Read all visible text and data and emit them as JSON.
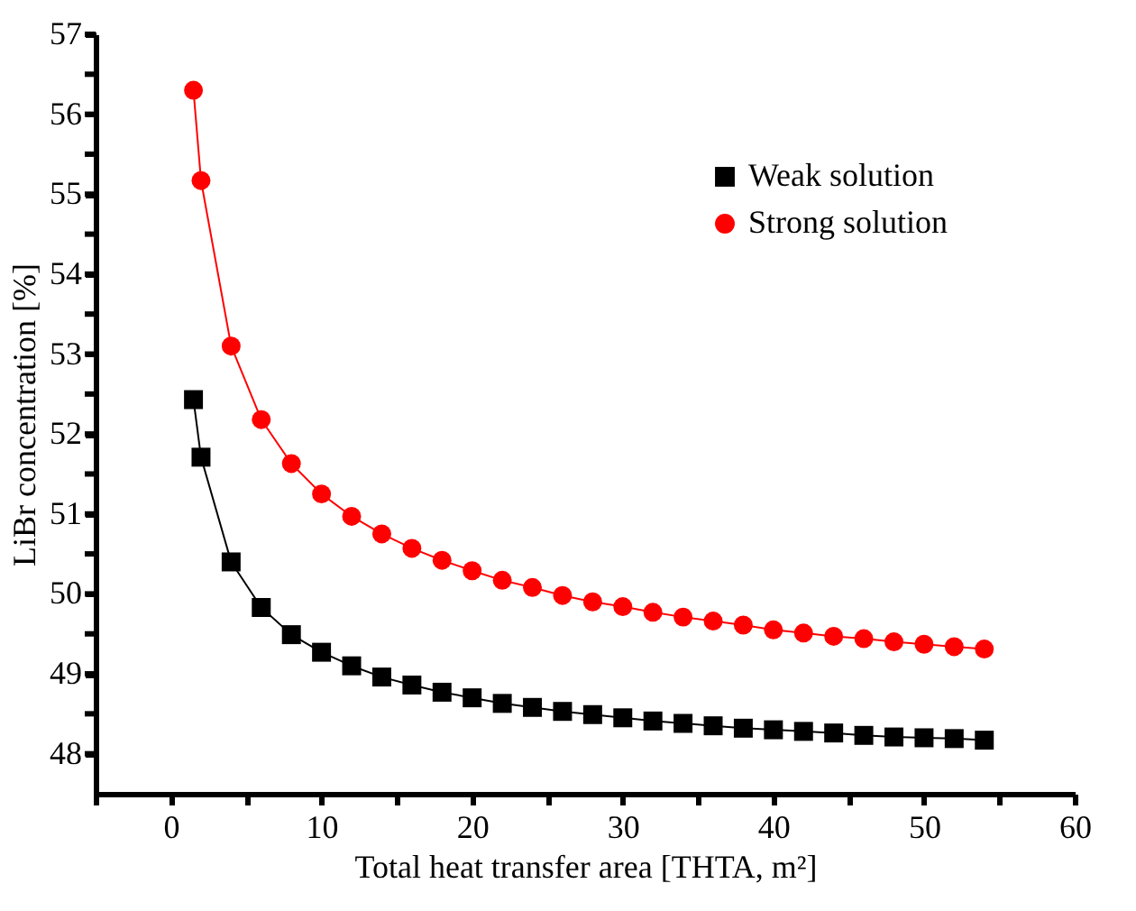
{
  "chart_data": {
    "type": "line",
    "xlabel": "Total heat transfer area [THTA, m²]",
    "ylabel": "LiBr concentration [%]",
    "x": [
      1.5,
      2,
      4,
      6,
      8,
      10,
      12,
      14,
      16,
      18,
      20,
      22,
      24,
      26,
      28,
      30,
      32,
      34,
      36,
      38,
      40,
      42,
      44,
      46,
      48,
      50,
      52,
      54
    ],
    "series": [
      {
        "name": "Weak solution",
        "color": "#000000",
        "marker": "square",
        "values": [
          52.43,
          51.71,
          50.4,
          49.83,
          49.49,
          49.27,
          49.1,
          48.96,
          48.86,
          48.77,
          48.7,
          48.63,
          48.58,
          48.53,
          48.49,
          48.45,
          48.41,
          48.38,
          48.35,
          48.32,
          48.3,
          48.28,
          48.26,
          48.23,
          48.21,
          48.2,
          48.19,
          48.17
        ]
      },
      {
        "name": "Strong solution",
        "color": "#ff0000",
        "marker": "circle",
        "values": [
          56.3,
          55.17,
          53.1,
          52.18,
          51.63,
          51.25,
          50.97,
          50.75,
          50.57,
          50.42,
          50.29,
          50.17,
          50.08,
          49.98,
          49.9,
          49.84,
          49.77,
          49.71,
          49.66,
          49.61,
          49.55,
          49.51,
          49.47,
          49.44,
          49.4,
          49.37,
          49.34,
          49.31
        ]
      }
    ],
    "xlim": [
      -5,
      60
    ],
    "xticks": [
      {
        "value": -5,
        "label": null
      },
      0,
      {
        "value": 5,
        "label": null
      },
      10,
      {
        "value": 15,
        "label": null
      },
      20,
      {
        "value": 25,
        "label": null
      },
      30,
      {
        "value": 35,
        "label": null
      },
      40,
      {
        "value": 45,
        "label": null
      },
      50,
      {
        "value": 55,
        "label": null
      },
      60
    ],
    "ylim": [
      47.5,
      57
    ],
    "yticks": [
      48,
      {
        "value": 48.5,
        "label": null
      },
      49,
      {
        "value": 49.5,
        "label": null
      },
      50,
      {
        "value": 50.5,
        "label": null
      },
      51,
      {
        "value": 51.5,
        "label": null
      },
      52,
      {
        "value": 52.5,
        "label": null
      },
      53,
      {
        "value": 53.5,
        "label": null
      },
      54,
      {
        "value": 54.5,
        "label": null
      },
      55,
      {
        "value": 55.5,
        "label": null
      },
      56,
      {
        "value": 56.5,
        "label": null
      },
      57
    ],
    "grid": false,
    "legend": "top right",
    "line_style": "solid"
  }
}
